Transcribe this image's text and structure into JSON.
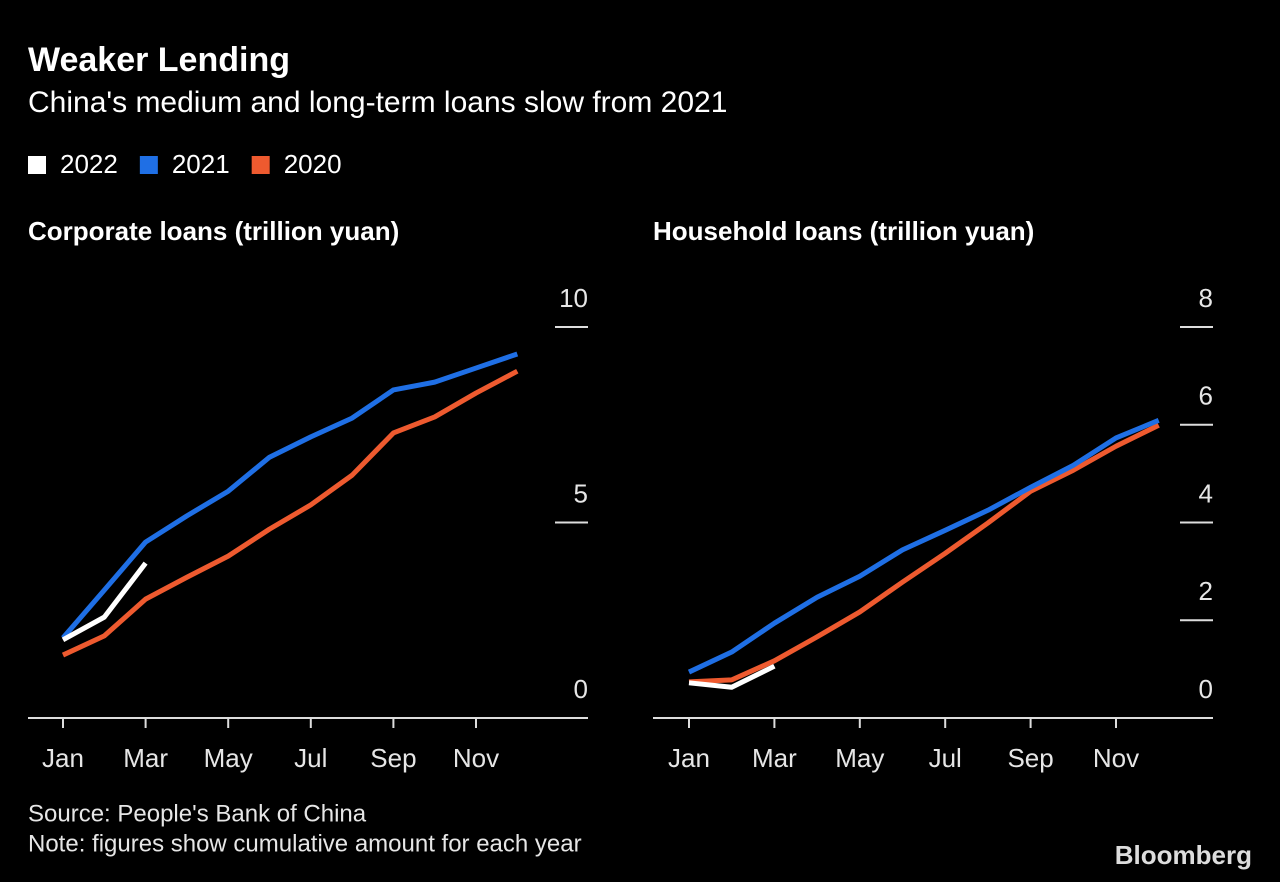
{
  "title": "Weaker Lending",
  "subtitle": "China's medium and long-term loans slow from 2021",
  "source": "Source: People's Bank of China",
  "note": "Note: figures show cumulative amount for each year",
  "logo": "Bloomberg",
  "chart_data": [
    {
      "type": "line",
      "title": "Corporate loans (trillion yuan)",
      "categories": [
        "Jan",
        null,
        "Mar",
        null,
        "May",
        null,
        "Jul",
        null,
        "Sep",
        null,
        "Nov",
        null
      ],
      "series": [
        {
          "name": "2022",
          "color": "#ffffff",
          "values": [
            2.0,
            2.58,
            3.96,
            null,
            null,
            null,
            null,
            null,
            null,
            null,
            null,
            null
          ]
        },
        {
          "name": "2021",
          "color": "#1f6fe5",
          "values": [
            2.05,
            3.27,
            4.5,
            5.17,
            5.8,
            6.67,
            7.19,
            7.67,
            8.39,
            8.59,
            8.95,
            9.31
          ]
        },
        {
          "name": "2020",
          "color": "#ee5a2f",
          "values": [
            1.61,
            2.1,
            3.04,
            3.6,
            4.14,
            4.83,
            5.45,
            6.21,
            7.29,
            7.7,
            8.31,
            8.87
          ]
        }
      ],
      "ylim": [
        0,
        10
      ],
      "yticks": [
        0,
        5,
        10
      ]
    },
    {
      "type": "line",
      "title": "Household loans (trillion yuan)",
      "categories": [
        "Jan",
        null,
        "Mar",
        null,
        "May",
        null,
        "Jul",
        null,
        "Sep",
        null,
        "Nov",
        null
      ],
      "series": [
        {
          "name": "2022",
          "color": "#ffffff",
          "values": [
            0.72,
            0.63,
            1.06,
            null,
            null,
            null,
            null,
            null,
            null,
            null,
            null,
            null
          ]
        },
        {
          "name": "2021",
          "color": "#1f6fe5",
          "values": [
            0.94,
            1.35,
            1.94,
            2.47,
            2.9,
            3.44,
            3.84,
            4.25,
            4.72,
            5.17,
            5.73,
            6.09
          ]
        },
        {
          "name": "2020",
          "color": "#ee5a2f",
          "values": [
            0.74,
            0.78,
            1.17,
            1.66,
            2.17,
            2.78,
            3.37,
            3.99,
            4.64,
            5.07,
            5.56,
            5.99
          ]
        }
      ],
      "ylim": [
        0,
        8
      ],
      "yticks": [
        0,
        2,
        4,
        6,
        8
      ]
    }
  ]
}
